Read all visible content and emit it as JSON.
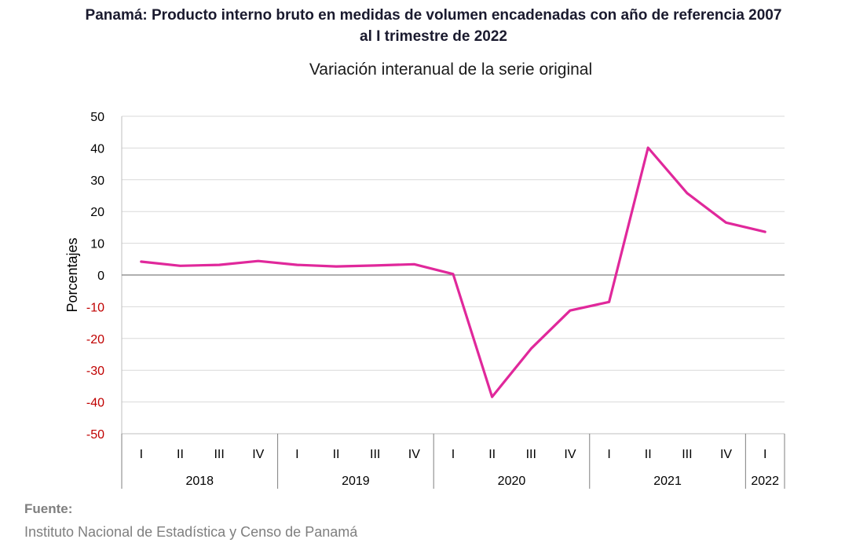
{
  "title_line1": "Panamá: Producto interno bruto en medidas  de volumen encadenadas con año de referencia 2007",
  "title_line2": "al I trimestre de 2022",
  "chart_data": {
    "type": "line",
    "subtitle": "Variación interanual de la serie original",
    "ylabel": "Porcentajes",
    "ylim": [
      -50,
      50
    ],
    "yticks": [
      50,
      40,
      30,
      20,
      10,
      0,
      -10,
      -20,
      -30,
      -40,
      -50
    ],
    "grid": true,
    "categories": [
      "I",
      "II",
      "III",
      "IV",
      "I",
      "II",
      "III",
      "IV",
      "I",
      "II",
      "III",
      "IV",
      "I",
      "II",
      "III",
      "IV",
      "I"
    ],
    "years": [
      {
        "label": "2018",
        "count": 4
      },
      {
        "label": "2019",
        "count": 4
      },
      {
        "label": "2020",
        "count": 4
      },
      {
        "label": "2021",
        "count": 4
      },
      {
        "label": "2022",
        "count": 1
      }
    ],
    "series": [
      {
        "values": [
          4.2,
          2.9,
          3.2,
          4.4,
          3.2,
          2.7,
          3.0,
          3.4,
          0.3,
          -38.4,
          -23.2,
          -11.2,
          -8.5,
          40.1,
          25.8,
          16.5,
          13.6
        ]
      }
    ],
    "colors": {
      "line": "#e0289b",
      "positive_tick": "#000000",
      "negative_tick": "#c00000",
      "grid": "#d9d9d9",
      "zero_line": "#7f7f7f"
    }
  },
  "source": {
    "label": "Fuente:",
    "text": "Instituto Nacional de Estadística y Censo de Panamá"
  }
}
